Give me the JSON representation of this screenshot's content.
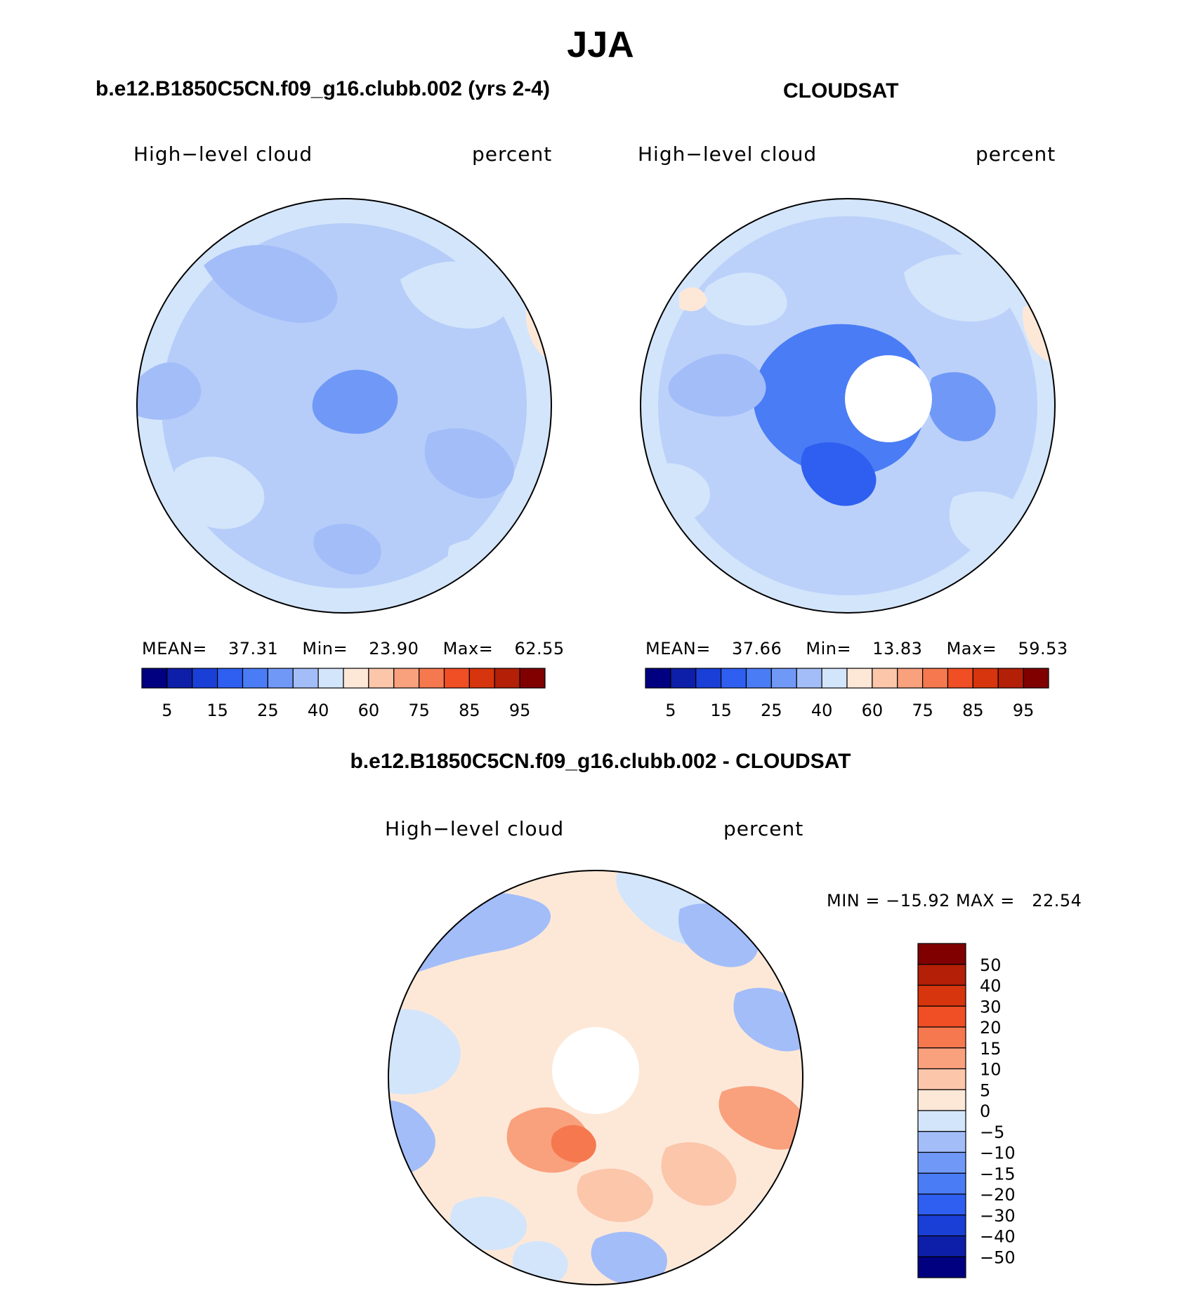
{
  "title": "JJA",
  "panels": [
    {
      "heading": "b.e12.B1850C5CN.f09_g16.clubb.002 (yrs 2-4)",
      "variable_label": "High−level cloud",
      "units_label": "percent",
      "stats": {
        "mean_label": "MEAN=",
        "mean": "37.31",
        "min_label": "Min=",
        "min": "23.90",
        "max_label": "Max=",
        "max": "62.55"
      }
    },
    {
      "heading": "CLOUDSAT",
      "variable_label": "High−level cloud",
      "units_label": "percent",
      "stats": {
        "mean_label": "MEAN=",
        "mean": "37.66",
        "min_label": "Min=",
        "min": "13.83",
        "max_label": "Max=",
        "max": "59.53"
      }
    },
    {
      "heading": "b.e12.B1850C5CN.f09_g16.clubb.002 - CLOUDSAT",
      "variable_label": "High−level cloud",
      "units_label": "percent",
      "minmax": "MIN = −15.92 MAX =   22.54"
    }
  ],
  "colorbar_abs": {
    "colors": [
      "#000080",
      "#0d1fa8",
      "#1a3fd6",
      "#2e5ff0",
      "#4a7cf5",
      "#7099f7",
      "#a3bdf9",
      "#d3e5fb",
      "#fde8d8",
      "#fcc6aa",
      "#f9a07d",
      "#f5784f",
      "#f04e25",
      "#d6350d",
      "#b31f07",
      "#800000"
    ],
    "tick_labels": [
      "5",
      "15",
      "25",
      "40",
      "60",
      "75",
      "85",
      "95"
    ]
  },
  "colorbar_diff": {
    "colors": [
      "#800000",
      "#b31f07",
      "#d6350d",
      "#f04e25",
      "#f5784f",
      "#f9a07d",
      "#fcc6aa",
      "#fde8d8",
      "#d3e5fb",
      "#a3bdf9",
      "#7099f7",
      "#4a7cf5",
      "#2e5ff0",
      "#1a3fd6",
      "#0d1fa8",
      "#000080"
    ],
    "tick_labels": [
      "50",
      "40",
      "30",
      "20",
      "15",
      "10",
      "5",
      "0",
      "−5",
      "−10",
      "−15",
      "−20",
      "−30",
      "−40",
      "−50"
    ]
  },
  "colors": {
    "coast": "#000000",
    "pole_hole": "#ffffff"
  }
}
